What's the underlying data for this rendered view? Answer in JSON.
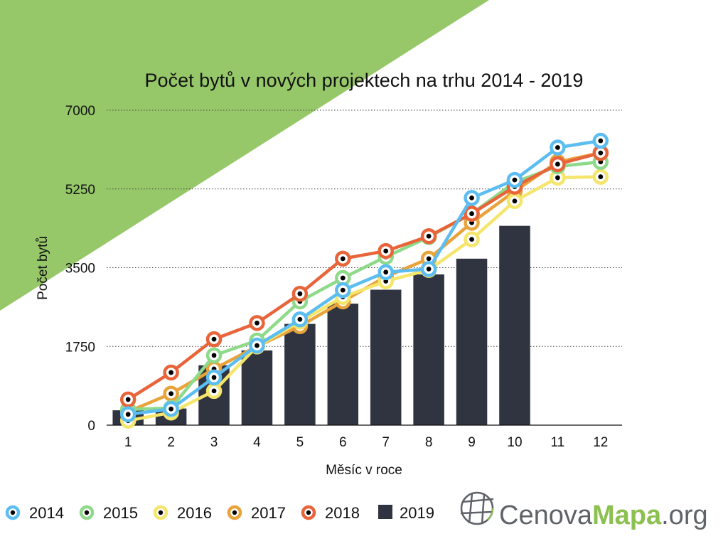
{
  "colors": {
    "background": "#ffffff",
    "corner_green": "#96c869",
    "bar": "#2f3440",
    "grid": "#444444",
    "logo_gray": "#5f6368",
    "logo_green": "#8cc050"
  },
  "logo": {
    "part1": "Cenova",
    "part2": "Mapa",
    "part3": ".org",
    "icon": "globe-grid-icon"
  },
  "chart_data": {
    "type": "line",
    "title": "Počet bytů v nových projektech na trhu 2014 - 2019",
    "xlabel": "Měsíc v roce",
    "ylabel": "Počet bytů",
    "categories": [
      "1",
      "2",
      "3",
      "4",
      "5",
      "6",
      "7",
      "8",
      "9",
      "10",
      "11",
      "12"
    ],
    "ylim": [
      0,
      7000
    ],
    "yticks": [
      "0",
      "1750",
      "3500",
      "5250",
      "7000"
    ],
    "grid": "horizontal-dotted",
    "legend_position": "bottom",
    "series": [
      {
        "name": "2019",
        "kind": "bar",
        "color": "#2f3440",
        "values": [
          330,
          370,
          1330,
          1660,
          2250,
          2700,
          3010,
          3350,
          3700,
          4430,
          null,
          null
        ]
      },
      {
        "name": "2017",
        "kind": "line",
        "color": "#e8a33a",
        "values": [
          300,
          700,
          1250,
          1750,
          2200,
          2750,
          3300,
          3700,
          4500,
          5200,
          5850,
          6050
        ]
      },
      {
        "name": "2016",
        "kind": "line",
        "color": "#f5e56b",
        "values": [
          100,
          280,
          760,
          1750,
          2300,
          2850,
          3200,
          3450,
          4130,
          4980,
          5500,
          5520
        ]
      },
      {
        "name": "2015",
        "kind": "line",
        "color": "#8fd98a",
        "values": [
          350,
          380,
          1550,
          1880,
          2750,
          3270,
          3740,
          4180,
          4700,
          5400,
          5750,
          5850
        ]
      },
      {
        "name": "2018",
        "kind": "line",
        "color": "#e8643a",
        "values": [
          570,
          1170,
          1910,
          2270,
          2920,
          3700,
          3870,
          4200,
          4700,
          5300,
          5800,
          6050
        ]
      },
      {
        "name": "2014",
        "kind": "line",
        "color": "#5bbdf0",
        "values": [
          240,
          360,
          1060,
          1770,
          2350,
          3000,
          3400,
          3470,
          5050,
          5450,
          6170,
          6320
        ]
      }
    ],
    "legend_order": [
      "2014",
      "2015",
      "2016",
      "2017",
      "2018",
      "2019"
    ]
  }
}
